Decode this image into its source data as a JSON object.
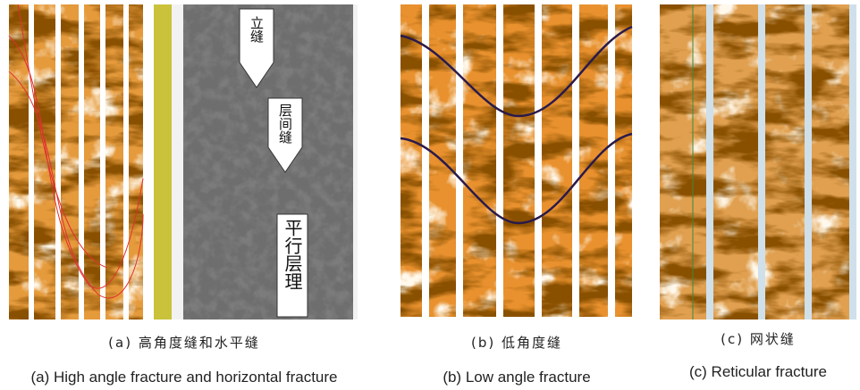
{
  "panels": [
    {
      "image_labels": [
        "立缝",
        "层间缝",
        "平行层理"
      ],
      "caption_zh": "(a) 高角度缝和水平缝",
      "caption_en": "(a) High angle fracture and horizontal fracture"
    },
    {
      "caption_zh": "(b) 低角度缝",
      "caption_en": "(b) Low angle fracture"
    },
    {
      "caption_zh": "(c) 网状缝",
      "caption_en": "(c) Reticular fracture"
    }
  ]
}
